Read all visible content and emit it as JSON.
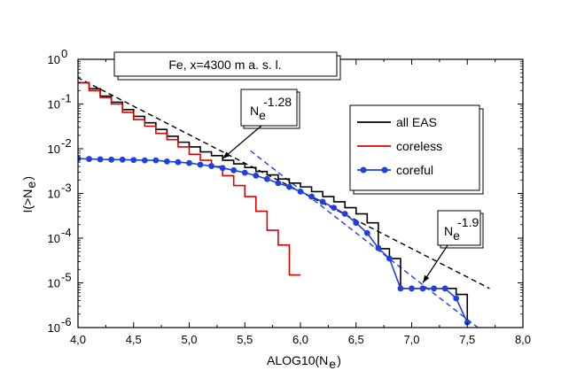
{
  "chart_data": {
    "type": "line",
    "title": "Fe, x=4300 m a. s. l.",
    "xlabel": "ALOG10(N",
    "xlabel_sub": "e",
    "xlabel_close": ")",
    "ylabel": "I(>N",
    "ylabel_sub": "e",
    "ylabel_close": ")",
    "xlim": [
      4.0,
      8.0
    ],
    "ylim_log10": [
      -6,
      0
    ],
    "x_ticks": [
      4.0,
      4.5,
      5.0,
      5.5,
      6.0,
      6.5,
      7.0,
      7.5,
      8.0
    ],
    "x_tick_labels": [
      "4,0",
      "4,5",
      "5,0",
      "5,5",
      "6,0",
      "6,5",
      "7,0",
      "7,5",
      "8,0"
    ],
    "y_tick_exponents": [
      0,
      -1,
      -2,
      -3,
      -4,
      -5,
      -6
    ],
    "y_tick_base": "10",
    "y_tick_exponent_labels": [
      "0",
      "-1",
      "-2",
      "-3",
      "-4",
      "-5",
      "-6"
    ],
    "legend": {
      "placement": "right",
      "entries": [
        {
          "label": "all EAS",
          "color": "#000000",
          "marker": "none"
        },
        {
          "label": "coreless",
          "color": "#e00000",
          "marker": "none"
        },
        {
          "label": "coreful",
          "color": "#1f3fe0",
          "marker": "circle"
        }
      ]
    },
    "series": [
      {
        "name": "all EAS",
        "style": "step",
        "color": "#000000",
        "x": [
          4.0,
          4.1,
          4.2,
          4.3,
          4.4,
          4.5,
          4.6,
          4.7,
          4.8,
          4.9,
          5.0,
          5.1,
          5.2,
          5.3,
          5.4,
          5.5,
          5.6,
          5.7,
          5.8,
          5.9,
          6.0,
          6.1,
          6.2,
          6.3,
          6.4,
          6.5,
          6.6,
          6.7,
          6.8,
          6.9,
          7.0,
          7.1,
          7.2,
          7.3,
          7.4,
          7.5
        ],
        "y": [
          0.3,
          0.22,
          0.15,
          0.11,
          0.075,
          0.053,
          0.038,
          0.027,
          0.019,
          0.014,
          0.011,
          0.0085,
          0.007,
          0.0055,
          0.0046,
          0.0038,
          0.0031,
          0.0026,
          0.0021,
          0.0017,
          0.0014,
          0.0011,
          0.00085,
          0.00065,
          0.00048,
          0.00035,
          0.00022,
          5.8e-05,
          3.5e-05,
          7.5e-06,
          7.5e-06,
          7.5e-06,
          7.5e-06,
          7.5e-06,
          5.5e-06,
          1.3e-06
        ]
      },
      {
        "name": "coreless",
        "style": "step",
        "color": "#e00000",
        "x": [
          4.0,
          4.1,
          4.2,
          4.3,
          4.4,
          4.5,
          4.6,
          4.7,
          4.8,
          4.9,
          5.0,
          5.1,
          5.2,
          5.3,
          5.4,
          5.5,
          5.6,
          5.7,
          5.8,
          5.9,
          6.0
        ],
        "y": [
          0.3,
          0.2,
          0.14,
          0.1,
          0.065,
          0.045,
          0.032,
          0.022,
          0.016,
          0.011,
          0.0075,
          0.0055,
          0.004,
          0.0025,
          0.0015,
          0.00085,
          0.0004,
          0.00015,
          7e-05,
          1.5e-05,
          1.5e-05
        ]
      },
      {
        "name": "coreful",
        "style": "line-marker",
        "color": "#1f3fe0",
        "x": [
          4.0,
          4.1,
          4.2,
          4.3,
          4.4,
          4.5,
          4.6,
          4.7,
          4.8,
          4.9,
          5.0,
          5.1,
          5.2,
          5.3,
          5.4,
          5.5,
          5.6,
          5.7,
          5.8,
          5.9,
          6.0,
          6.1,
          6.2,
          6.3,
          6.4,
          6.5,
          6.6,
          6.7,
          6.8,
          6.9,
          7.0,
          7.1,
          7.2,
          7.3,
          7.4,
          7.5
        ],
        "y": [
          0.006,
          0.0059,
          0.0058,
          0.0057,
          0.0057,
          0.0056,
          0.0055,
          0.0055,
          0.0052,
          0.005,
          0.0048,
          0.0044,
          0.0041,
          0.0037,
          0.0033,
          0.0029,
          0.0025,
          0.0021,
          0.0017,
          0.0014,
          0.0011,
          0.00085,
          0.00065,
          0.00048,
          0.00035,
          0.00022,
          0.00013,
          6e-05,
          3.5e-05,
          7.5e-06,
          7.5e-06,
          7.5e-06,
          7.5e-06,
          7.5e-06,
          4.5e-06,
          1.3e-06
        ]
      }
    ],
    "fit_lines": [
      {
        "name": "fit-1.28",
        "color": "#000000",
        "dash": true,
        "x": [
          3.85,
          7.7
        ],
        "y": [
          0.6,
          7.5e-06
        ]
      },
      {
        "name": "fit-1.9",
        "color": "#1f3fe0",
        "dash": true,
        "x": [
          5.55,
          7.75
        ],
        "y": [
          0.009,
          5e-07
        ]
      }
    ],
    "annotations": [
      {
        "name": "slope-1.28",
        "base": "N",
        "sub": "e",
        "sup": "-1.28",
        "arrow_to": [
          5.3,
          0.006
        ]
      },
      {
        "name": "slope-1.9",
        "base": "N",
        "sub": "e",
        "sup": "-1.9",
        "arrow_to": [
          7.1,
          1e-05
        ]
      }
    ]
  }
}
